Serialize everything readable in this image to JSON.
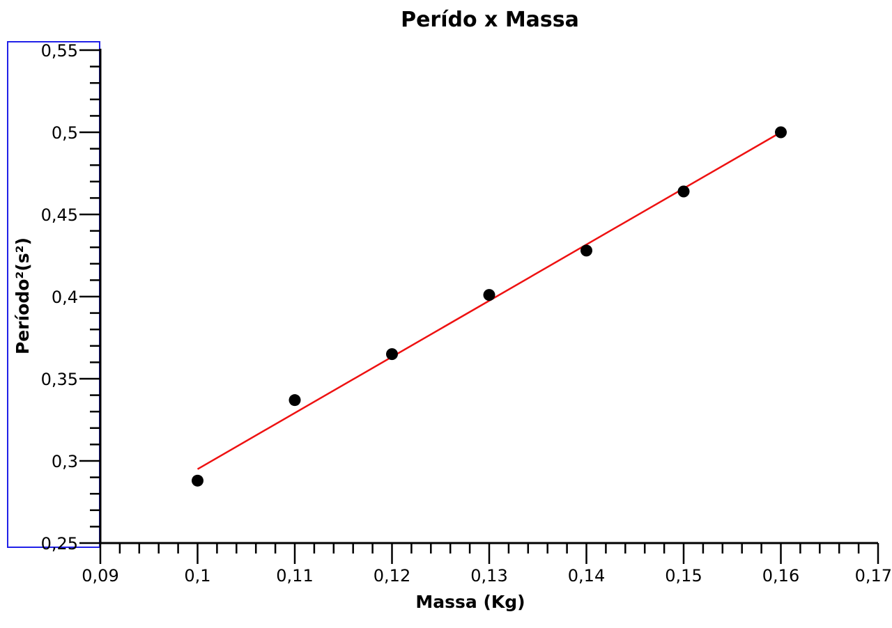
{
  "chart_data": {
    "type": "scatter",
    "title": "Perído x Massa",
    "xlabel": "Massa (Kg)",
    "ylabel": "Período²(s²)",
    "xlim": [
      0.09,
      0.17
    ],
    "ylim": [
      0.25,
      0.55
    ],
    "x_ticks": [
      "0,09",
      "0,1",
      "0,11",
      "0,12",
      "0,13",
      "0,14",
      "0,15",
      "0,16",
      "0,17"
    ],
    "y_ticks": [
      "0,25",
      "0,3",
      "0,35",
      "0,4",
      "0,45",
      "0,5",
      "0,55"
    ],
    "grid": false,
    "series": [
      {
        "type": "scatter",
        "color": "#000000",
        "points": [
          {
            "x": 0.1,
            "y": 0.288
          },
          {
            "x": 0.11,
            "y": 0.337
          },
          {
            "x": 0.12,
            "y": 0.365
          },
          {
            "x": 0.13,
            "y": 0.401
          },
          {
            "x": 0.14,
            "y": 0.428
          },
          {
            "x": 0.15,
            "y": 0.464
          },
          {
            "x": 0.16,
            "y": 0.5
          }
        ]
      },
      {
        "type": "line",
        "color": "#ee1111",
        "points": [
          {
            "x": 0.1,
            "y": 0.295
          },
          {
            "x": 0.16,
            "y": 0.5
          }
        ]
      }
    ]
  }
}
